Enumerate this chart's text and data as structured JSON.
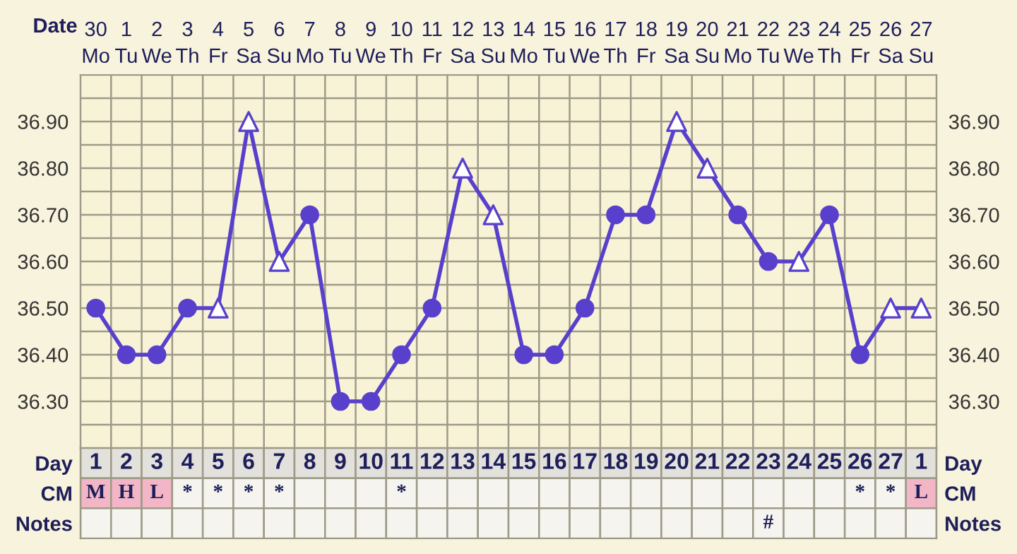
{
  "chart_data": [
    {
      "type": "line",
      "xlabel": "Date",
      "categories": [
        "30\nMo",
        "1\nTu",
        "2\nWe",
        "3\nTh",
        "4\nFr",
        "5\nSa",
        "6\nSu",
        "7\nMo",
        "8\nTu",
        "9\nWe",
        "10\nTh",
        "11\nFr",
        "12\nSa",
        "13\nSu",
        "14\nMo",
        "15\nTu",
        "16\nWe",
        "17\nTh",
        "18\nFr",
        "19\nSa",
        "20\nSu",
        "21\nMo",
        "22\nTu",
        "23\nWe",
        "24\nTh",
        "25\nFr",
        "26\nSa",
        "27\nSu"
      ],
      "series": [
        {
          "type": "line",
          "color": "#5840cc",
          "marker": "none",
          "values": [
            36.5,
            36.4,
            36.4,
            36.5,
            36.5,
            36.9,
            36.6,
            36.7,
            36.3,
            36.3,
            36.4,
            36.5,
            36.8,
            36.7,
            36.4,
            36.4,
            36.5,
            36.7,
            36.7,
            36.9,
            36.8,
            36.7,
            36.6,
            36.6,
            36.7,
            36.4,
            36.5,
            36.5
          ]
        },
        {
          "type": "scatter",
          "color": "#5840cc",
          "marker": "circle",
          "values": [
            36.5,
            36.4,
            36.4,
            36.5,
            null,
            null,
            null,
            36.7,
            36.3,
            36.3,
            36.4,
            36.5,
            null,
            null,
            36.4,
            36.4,
            36.5,
            36.7,
            36.7,
            null,
            null,
            36.7,
            36.6,
            null,
            36.7,
            36.4,
            null,
            null
          ]
        },
        {
          "type": "scatter",
          "color": "#5840cc",
          "marker": "triangle",
          "values": [
            null,
            null,
            null,
            null,
            36.5,
            36.9,
            36.6,
            null,
            null,
            null,
            null,
            null,
            36.8,
            36.7,
            null,
            null,
            null,
            null,
            null,
            36.9,
            36.8,
            null,
            null,
            36.6,
            null,
            null,
            36.5,
            36.5
          ]
        }
      ],
      "ylim": [
        36.2,
        37.0
      ],
      "yticks": [
        {
          "value": 36.2,
          "label": null
        },
        {
          "value": 36.25,
          "label": null
        },
        {
          "value": 36.3,
          "label": "36.30"
        },
        {
          "value": 36.35,
          "label": null
        },
        {
          "value": 36.4,
          "label": "36.40"
        },
        {
          "value": 36.45,
          "label": null
        },
        {
          "value": 36.5,
          "label": "36.50"
        },
        {
          "value": 36.55,
          "label": null
        },
        {
          "value": 36.6,
          "label": "36.60"
        },
        {
          "value": 36.65,
          "label": null
        },
        {
          "value": 36.7,
          "label": "36.70"
        },
        {
          "value": 36.75,
          "label": null
        },
        {
          "value": 36.8,
          "label": "36.80"
        },
        {
          "value": 36.85,
          "label": null
        },
        {
          "value": 36.9,
          "label": "36.90"
        },
        {
          "value": 36.95,
          "label": null
        },
        {
          "value": 37.0,
          "label": null
        }
      ],
      "y2lim": [
        36.2,
        37.0
      ],
      "y2ticks": [
        {
          "value": 36.2,
          "label": null
        },
        {
          "value": 36.25,
          "label": null
        },
        {
          "value": 36.3,
          "label": "36.30"
        },
        {
          "value": 36.35,
          "label": null
        },
        {
          "value": 36.4,
          "label": "36.40"
        },
        {
          "value": 36.45,
          "label": null
        },
        {
          "value": 36.5,
          "label": "36.50"
        },
        {
          "value": 36.55,
          "label": null
        },
        {
          "value": 36.6,
          "label": "36.60"
        },
        {
          "value": 36.65,
          "label": null
        },
        {
          "value": 36.7,
          "label": "36.70"
        },
        {
          "value": 36.75,
          "label": null
        },
        {
          "value": 36.8,
          "label": "36.80"
        },
        {
          "value": 36.85,
          "label": null
        },
        {
          "value": 36.9,
          "label": "36.90"
        },
        {
          "value": 36.95,
          "label": null
        },
        {
          "value": 37.0,
          "label": null
        }
      ],
      "grid": true,
      "legend": false
    },
    {
      "type": "heatmap",
      "xlabel": "Day",
      "categories": [
        "1",
        "2",
        "3",
        "4",
        "5",
        "6",
        "7",
        "8",
        "9",
        "10",
        "11",
        "12",
        "13",
        "14",
        "15",
        "16",
        "17",
        "18",
        "19",
        "20",
        "21",
        "22",
        "23",
        "24",
        "25",
        "26",
        "27",
        "1"
      ],
      "y_categories": [
        "CM",
        "Notes"
      ],
      "y2_categories": [
        "CM",
        "Notes"
      ],
      "cells": [
        [
          null,
          null,
          null,
          null,
          null,
          null,
          null,
          null,
          null,
          null,
          null,
          null,
          null,
          null,
          null,
          null,
          null,
          null,
          null,
          null,
          null,
          null,
          null,
          null,
          null,
          null,
          null,
          null
        ],
        [
          null,
          null,
          null,
          null,
          null,
          null,
          null,
          null,
          null,
          null,
          null,
          null,
          null,
          null,
          null,
          null,
          null,
          null,
          null,
          null,
          null,
          null,
          null,
          null,
          null,
          null,
          null,
          null
        ]
      ],
      "cell_labels": [
        [
          "M",
          "H",
          "L",
          "*",
          "*",
          "*",
          "*",
          null,
          null,
          null,
          "*",
          null,
          null,
          null,
          null,
          null,
          null,
          null,
          null,
          null,
          null,
          null,
          null,
          null,
          null,
          "*",
          "*",
          "L"
        ],
        [
          null,
          null,
          null,
          null,
          null,
          null,
          null,
          null,
          null,
          null,
          null,
          null,
          null,
          null,
          null,
          null,
          null,
          null,
          null,
          null,
          null,
          null,
          "#",
          null,
          null,
          null,
          null,
          null
        ]
      ],
      "colors": [
        [
          "#f2b6c6",
          "#f2b6c6",
          "#f2b6c6",
          "#f5f4ee",
          "#f5f4ee",
          "#f5f4ee",
          "#f5f4ee",
          "#f5f4ee",
          "#f5f4ee",
          "#f5f4ee",
          "#f5f4ee",
          "#f5f4ee",
          "#f5f4ee",
          "#f5f4ee",
          "#f5f4ee",
          "#f5f4ee",
          "#f5f4ee",
          "#f5f4ee",
          "#f5f4ee",
          "#f5f4ee",
          "#f5f4ee",
          "#f5f4ee",
          "#f5f4ee",
          "#f5f4ee",
          "#f5f4ee",
          "#f5f4ee",
          "#f5f4ee",
          "#f2b6c6"
        ],
        [
          "#f5f4ee",
          "#f5f4ee",
          "#f5f4ee",
          "#f5f4ee",
          "#f5f4ee",
          "#f5f4ee",
          "#f5f4ee",
          "#f5f4ee",
          "#f5f4ee",
          "#f5f4ee",
          "#f5f4ee",
          "#f5f4ee",
          "#f5f4ee",
          "#f5f4ee",
          "#f5f4ee",
          "#f5f4ee",
          "#f5f4ee",
          "#f5f4ee",
          "#f5f4ee",
          "#f5f4ee",
          "#f5f4ee",
          "#f5f4ee",
          "#f5f4ee",
          "#f5f4ee",
          "#f5f4ee",
          "#f5f4ee",
          "#f5f4ee",
          "#f5f4ee"
        ]
      ]
    }
  ]
}
